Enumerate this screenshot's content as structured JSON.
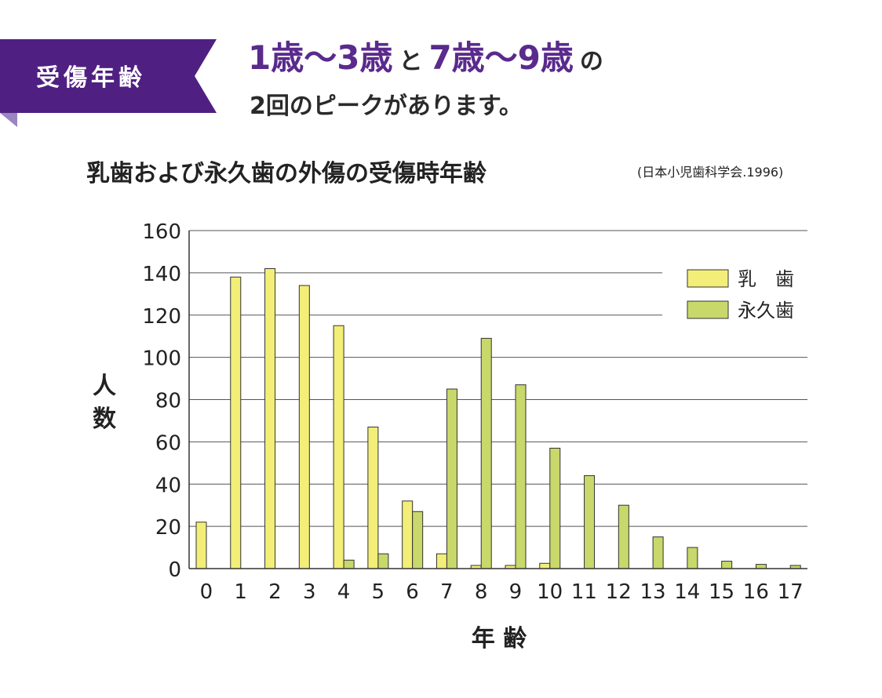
{
  "tag": {
    "label": "受傷年齢"
  },
  "headline": {
    "part1": "1歳〜3歳",
    "conj": "と",
    "part2": "7歳〜9歳",
    "particle": "の",
    "line2": "2回のピークがあります。"
  },
  "colors": {
    "purple": "#4f2082",
    "headline_purple": "#5a2a8c",
    "baby_teeth": "#f2ee78",
    "permanent_teeth": "#c8d86a",
    "bar_outline": "#333333"
  },
  "chart_data": {
    "type": "bar",
    "title": "乳歯および永久歯の外傷の受傷時年齢",
    "source": "(日本小児歯科学会.1996)",
    "xlabel": "年 齢",
    "ylabel": "人数",
    "ylim": [
      0,
      160
    ],
    "yticks": [
      "0",
      "20",
      "40",
      "60",
      "80",
      "100",
      "120",
      "140",
      "160"
    ],
    "grid": true,
    "legend_position": "top-right",
    "categories": [
      "0",
      "1",
      "2",
      "3",
      "4",
      "5",
      "6",
      "7",
      "8",
      "9",
      "10",
      "11",
      "12",
      "13",
      "14",
      "15",
      "16",
      "17"
    ],
    "series": [
      {
        "name": "乳　歯",
        "color": "#f2ee78",
        "values": [
          22,
          138,
          142,
          134,
          115,
          67,
          32,
          7,
          1.5,
          1.5,
          2.5,
          0,
          0,
          0,
          0,
          0,
          0,
          0
        ]
      },
      {
        "name": "永久歯",
        "color": "#c8d86a",
        "values": [
          0,
          0,
          0,
          0,
          4,
          7,
          27,
          85,
          109,
          87,
          57,
          44,
          30,
          15,
          10,
          3.5,
          2,
          1.5
        ]
      }
    ]
  }
}
